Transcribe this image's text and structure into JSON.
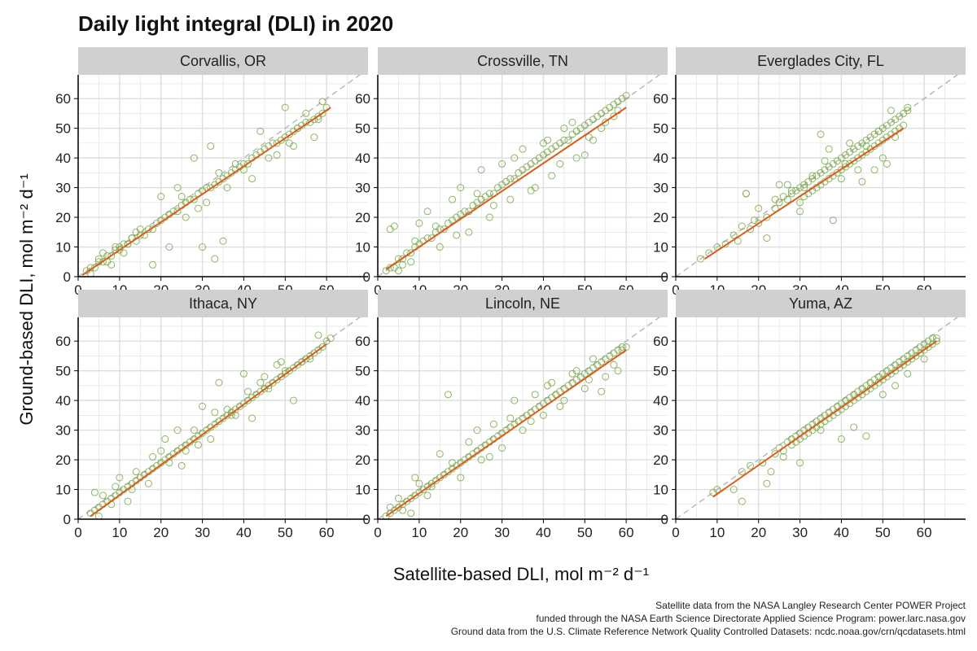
{
  "chart_data": {
    "type": "scatter",
    "title": "Daily light integral (DLI) in 2020",
    "xlabel": "Satellite-based DLI, mol m⁻² d⁻¹",
    "ylabel": "Ground-based DLI, mol m⁻² d⁻¹",
    "xlim": [
      0,
      70
    ],
    "ylim": [
      0,
      68
    ],
    "x_ticks": [
      "0",
      "10",
      "20",
      "30",
      "40",
      "50",
      "60"
    ],
    "y_ticks": [
      "0",
      "10",
      "20",
      "30",
      "40",
      "50",
      "60"
    ],
    "grid": true,
    "reference_line": "1:1 dashed",
    "facets": [
      {
        "name": "Corvallis, OR",
        "fit": {
          "x": [
            1,
            61
          ],
          "y": [
            0.5,
            57
          ]
        },
        "x": [
          2,
          3,
          4,
          5,
          6,
          7,
          8,
          9,
          10,
          11,
          12,
          13,
          14,
          15,
          16,
          17,
          18,
          19,
          20,
          21,
          22,
          23,
          24,
          25,
          26,
          27,
          28,
          29,
          30,
          31,
          32,
          33,
          34,
          35,
          36,
          37,
          38,
          39,
          40,
          41,
          42,
          43,
          44,
          45,
          46,
          47,
          48,
          49,
          50,
          51,
          52,
          53,
          54,
          55,
          56,
          57,
          58,
          59,
          60,
          18,
          22,
          25,
          28,
          30,
          31,
          32,
          33,
          35,
          38,
          42,
          44,
          48,
          50,
          52,
          55,
          57,
          59,
          6,
          8,
          10,
          12,
          14,
          20,
          24,
          26,
          29,
          34,
          36,
          40,
          46,
          51,
          53,
          58,
          3,
          5,
          7,
          9,
          11,
          13,
          15
        ],
        "y": [
          2,
          3,
          3,
          5,
          5,
          7,
          7,
          9,
          9,
          11,
          11,
          13,
          12,
          14,
          14,
          16,
          16,
          18,
          19,
          20,
          21,
          22,
          22,
          24,
          25,
          26,
          26,
          28,
          29,
          30,
          30,
          31,
          32,
          33,
          34,
          35,
          36,
          37,
          38,
          38,
          40,
          41,
          42,
          43,
          44,
          45,
          45,
          46,
          47,
          48,
          49,
          50,
          51,
          52,
          52,
          53,
          54,
          55,
          57,
          4,
          10,
          27,
          40,
          10,
          25,
          44,
          6,
          12,
          38,
          33,
          49,
          41,
          57,
          44,
          55,
          47,
          59,
          8,
          4,
          10,
          11,
          15,
          27,
          30,
          20,
          23,
          35,
          30,
          36,
          40,
          45,
          50,
          53,
          1,
          6,
          5,
          10,
          8,
          13,
          16
        ]
      },
      {
        "name": "Crossville, TN",
        "fit": {
          "x": [
            2,
            60
          ],
          "y": [
            2.5,
            57
          ]
        },
        "x": [
          2,
          3,
          4,
          5,
          6,
          7,
          8,
          9,
          10,
          11,
          12,
          13,
          14,
          15,
          16,
          17,
          18,
          19,
          20,
          21,
          22,
          23,
          24,
          25,
          26,
          27,
          28,
          29,
          30,
          31,
          32,
          33,
          34,
          35,
          36,
          37,
          38,
          39,
          40,
          41,
          42,
          43,
          44,
          45,
          46,
          47,
          48,
          49,
          50,
          51,
          52,
          53,
          54,
          55,
          56,
          57,
          58,
          59,
          60,
          3,
          4,
          5,
          8,
          10,
          12,
          15,
          18,
          20,
          22,
          25,
          28,
          30,
          32,
          35,
          38,
          40,
          42,
          45,
          48,
          50,
          52,
          55,
          57,
          6,
          9,
          14,
          19,
          24,
          27,
          33,
          37,
          41,
          44,
          47,
          51,
          54,
          58
        ],
        "y": [
          2,
          3,
          3,
          6,
          6,
          8,
          8,
          10,
          11,
          12,
          13,
          13,
          15,
          16,
          16,
          18,
          19,
          20,
          21,
          22,
          22,
          24,
          25,
          26,
          27,
          28,
          28,
          30,
          31,
          32,
          33,
          33,
          35,
          36,
          37,
          38,
          39,
          40,
          41,
          42,
          43,
          44,
          45,
          46,
          46,
          48,
          49,
          50,
          51,
          52,
          53,
          54,
          55,
          56,
          57,
          58,
          59,
          60,
          61,
          16,
          17,
          2,
          5,
          18,
          22,
          10,
          26,
          30,
          15,
          36,
          24,
          38,
          26,
          43,
          30,
          45,
          34,
          50,
          40,
          41,
          46,
          52,
          54,
          4,
          12,
          17,
          14,
          28,
          20,
          40,
          29,
          46,
          38,
          52,
          47,
          50,
          56
        ]
      },
      {
        "name": "Everglades City, FL",
        "fit": {
          "x": [
            7,
            55
          ],
          "y": [
            6,
            50
          ]
        },
        "x": [
          6,
          8,
          10,
          12,
          14,
          15,
          17,
          18,
          19,
          20,
          22,
          24,
          25,
          26,
          27,
          28,
          29,
          30,
          30,
          31,
          31,
          32,
          32,
          33,
          33,
          34,
          34,
          35,
          35,
          36,
          36,
          37,
          37,
          38,
          38,
          39,
          39,
          40,
          40,
          41,
          41,
          42,
          42,
          43,
          43,
          44,
          44,
          45,
          45,
          46,
          46,
          47,
          47,
          48,
          48,
          49,
          49,
          50,
          50,
          51,
          51,
          52,
          52,
          53,
          53,
          54,
          54,
          55,
          55,
          56,
          56,
          17,
          20,
          25,
          30,
          35,
          38,
          42,
          45,
          48,
          50,
          52,
          24,
          28,
          33,
          37,
          41,
          46,
          51,
          16,
          22,
          27,
          31,
          36,
          40,
          44,
          49,
          53
        ],
        "y": [
          6,
          8,
          10,
          11,
          14,
          12,
          28,
          16,
          19,
          18,
          20,
          23,
          25,
          27,
          26,
          28,
          29,
          30,
          25,
          31,
          27,
          32,
          28,
          33,
          29,
          34,
          30,
          35,
          31,
          36,
          32,
          37,
          33,
          38,
          34,
          39,
          35,
          40,
          36,
          41,
          37,
          42,
          38,
          43,
          39,
          44,
          40,
          45,
          41,
          46,
          42,
          47,
          43,
          48,
          44,
          49,
          45,
          50,
          46,
          51,
          47,
          52,
          48,
          53,
          49,
          54,
          50,
          55,
          51,
          56,
          57,
          28,
          23,
          31,
          22,
          48,
          19,
          45,
          32,
          36,
          40,
          56,
          26,
          29,
          34,
          43,
          38,
          44,
          38,
          17,
          13,
          31,
          30,
          39,
          33,
          36,
          49,
          47
        ]
      },
      {
        "name": "Ithaca, NY",
        "fit": {
          "x": [
            3,
            60
          ],
          "y": [
            1,
            59
          ]
        },
        "x": [
          3,
          4,
          5,
          6,
          7,
          8,
          9,
          10,
          11,
          12,
          13,
          14,
          15,
          16,
          17,
          18,
          19,
          20,
          21,
          22,
          23,
          24,
          25,
          26,
          27,
          28,
          29,
          30,
          31,
          32,
          33,
          34,
          35,
          36,
          37,
          38,
          39,
          40,
          41,
          42,
          43,
          44,
          45,
          46,
          47,
          48,
          49,
          50,
          51,
          52,
          53,
          54,
          55,
          56,
          57,
          58,
          59,
          60,
          61,
          4,
          6,
          8,
          10,
          12,
          14,
          18,
          20,
          22,
          24,
          26,
          28,
          30,
          32,
          34,
          36,
          38,
          40,
          42,
          44,
          46,
          48,
          50,
          52,
          54,
          56,
          58,
          5,
          9,
          13,
          17,
          21,
          25,
          29,
          33,
          37,
          41,
          45,
          49
        ],
        "y": [
          2,
          3,
          4,
          5,
          6,
          7,
          8,
          9,
          10,
          11,
          12,
          13,
          14,
          15,
          16,
          17,
          18,
          19,
          20,
          21,
          22,
          23,
          24,
          25,
          26,
          27,
          28,
          29,
          30,
          31,
          32,
          33,
          34,
          35,
          36,
          37,
          38,
          39,
          40,
          41,
          42,
          43,
          44,
          45,
          46,
          47,
          48,
          49,
          50,
          51,
          52,
          53,
          54,
          55,
          56,
          57,
          58,
          60,
          61,
          9,
          8,
          5,
          14,
          6,
          16,
          21,
          23,
          19,
          30,
          23,
          30,
          38,
          27,
          46,
          37,
          35,
          49,
          34,
          46,
          44,
          52,
          50,
          40,
          53,
          54,
          62,
          1,
          11,
          10,
          12,
          27,
          18,
          25,
          36,
          35,
          43,
          48,
          53
        ]
      },
      {
        "name": "Lincoln, NE",
        "fit": {
          "x": [
            2,
            60
          ],
          "y": [
            1,
            57
          ]
        },
        "x": [
          2,
          3,
          4,
          5,
          6,
          7,
          8,
          9,
          10,
          11,
          12,
          13,
          14,
          15,
          16,
          17,
          18,
          19,
          20,
          21,
          22,
          23,
          24,
          25,
          26,
          27,
          28,
          29,
          30,
          31,
          32,
          33,
          34,
          35,
          36,
          37,
          38,
          39,
          40,
          41,
          42,
          43,
          44,
          45,
          46,
          47,
          48,
          49,
          50,
          51,
          52,
          53,
          54,
          55,
          56,
          57,
          58,
          59,
          60,
          3,
          5,
          8,
          10,
          12,
          15,
          17,
          20,
          22,
          25,
          28,
          30,
          32,
          35,
          38,
          40,
          42,
          45,
          48,
          50,
          52,
          55,
          57,
          59,
          6,
          9,
          13,
          18,
          24,
          27,
          33,
          37,
          41,
          44,
          47,
          51,
          54,
          58
        ],
        "y": [
          1,
          2,
          3,
          4,
          5,
          6,
          7,
          8,
          9,
          10,
          11,
          12,
          13,
          14,
          15,
          16,
          17,
          18,
          19,
          20,
          21,
          22,
          23,
          24,
          25,
          26,
          27,
          28,
          29,
          30,
          31,
          32,
          33,
          34,
          35,
          36,
          37,
          38,
          39,
          40,
          41,
          42,
          43,
          44,
          45,
          46,
          47,
          48,
          49,
          50,
          51,
          52,
          53,
          54,
          55,
          56,
          57,
          58,
          58,
          4,
          7,
          2,
          12,
          8,
          22,
          42,
          14,
          26,
          20,
          32,
          24,
          34,
          30,
          42,
          35,
          46,
          40,
          50,
          44,
          54,
          48,
          52,
          57,
          3,
          14,
          11,
          19,
          30,
          21,
          40,
          33,
          45,
          38,
          49,
          47,
          43,
          50
        ]
      },
      {
        "name": "Yuma, AZ",
        "fit": {
          "x": [
            9,
            63
          ],
          "y": [
            7.5,
            60
          ]
        },
        "x": [
          9,
          10,
          14,
          16,
          18,
          21,
          22,
          24,
          25,
          26,
          27,
          28,
          28,
          29,
          29,
          30,
          30,
          31,
          31,
          32,
          32,
          33,
          33,
          34,
          34,
          35,
          35,
          36,
          36,
          37,
          37,
          38,
          38,
          39,
          39,
          40,
          40,
          41,
          41,
          42,
          42,
          43,
          43,
          44,
          44,
          45,
          45,
          46,
          46,
          47,
          47,
          48,
          48,
          49,
          49,
          50,
          50,
          51,
          51,
          52,
          52,
          53,
          53,
          54,
          54,
          55,
          55,
          56,
          56,
          57,
          57,
          58,
          58,
          59,
          59,
          60,
          60,
          61,
          61,
          62,
          62,
          63,
          63,
          16,
          23,
          26,
          30,
          35,
          40,
          43,
          46,
          50,
          53,
          56,
          60
        ],
        "y": [
          9,
          10,
          10,
          16,
          18,
          19,
          12,
          22,
          24,
          23,
          26,
          27,
          25,
          28,
          26,
          29,
          27,
          30,
          28,
          31,
          29,
          32,
          30,
          33,
          31,
          34,
          32,
          35,
          33,
          36,
          34,
          37,
          35,
          38,
          36,
          39,
          37,
          40,
          38,
          41,
          39,
          42,
          40,
          43,
          41,
          44,
          42,
          45,
          43,
          46,
          44,
          47,
          45,
          48,
          46,
          49,
          47,
          50,
          48,
          51,
          49,
          52,
          50,
          53,
          51,
          54,
          52,
          55,
          53,
          56,
          54,
          57,
          55,
          58,
          56,
          59,
          57,
          60,
          58,
          61,
          59,
          61,
          60,
          6,
          16,
          21,
          19,
          30,
          27,
          31,
          28,
          42,
          45,
          49,
          54
        ]
      }
    ]
  },
  "caption": {
    "line1": "Satellite data from the NASA Langley Research Center POWER Project",
    "line2": "funded through the NASA Earth Science Directorate Applied Science Program: power.larc.nasa.gov",
    "line3": "Ground data from the U.S. Climate Reference Network Quality Controlled Datasets: ncdc.noaa.gov/crn/qcdatasets.html"
  },
  "colors": {
    "points": "#7aa84a",
    "fit_line": "#d95f1a",
    "reference_line": "#b8b8b8",
    "strip_background": "#d0d0d0",
    "grid": "#dedede"
  }
}
